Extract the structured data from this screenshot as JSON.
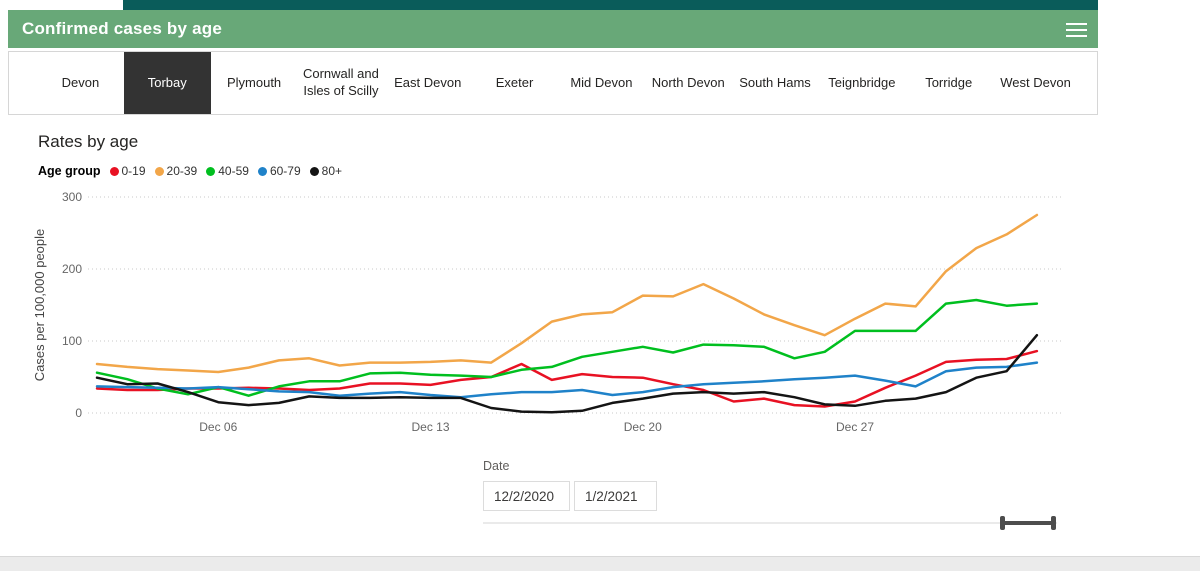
{
  "header": {
    "title": "Confirmed cases by age"
  },
  "tabs": [
    {
      "label": "Devon",
      "selected": false
    },
    {
      "label": "Torbay",
      "selected": true
    },
    {
      "label": "Plymouth",
      "selected": false
    },
    {
      "label": "Cornwall and Isles of Scilly",
      "selected": false
    },
    {
      "label": "East Devon",
      "selected": false
    },
    {
      "label": "Exeter",
      "selected": false
    },
    {
      "label": "Mid Devon",
      "selected": false
    },
    {
      "label": "North Devon",
      "selected": false
    },
    {
      "label": "South Hams",
      "selected": false
    },
    {
      "label": "Teignbridge",
      "selected": false
    },
    {
      "label": "Torridge",
      "selected": false
    },
    {
      "label": "West Devon",
      "selected": false
    }
  ],
  "chart": {
    "title": "Rates by age",
    "legend_title": "Age group"
  },
  "chart_data": {
    "type": "line",
    "title": "Rates by age",
    "xlabel": "Date",
    "ylabel": "Cases per 100,000 people",
    "ylim": [
      0,
      300
    ],
    "yticks": [
      0,
      100,
      200,
      300
    ],
    "grid": "horizontal-dotted",
    "legend_position": "top",
    "x": [
      "Dec 02",
      "Dec 03",
      "Dec 04",
      "Dec 05",
      "Dec 06",
      "Dec 07",
      "Dec 08",
      "Dec 09",
      "Dec 10",
      "Dec 11",
      "Dec 12",
      "Dec 13",
      "Dec 14",
      "Dec 15",
      "Dec 16",
      "Dec 17",
      "Dec 18",
      "Dec 19",
      "Dec 20",
      "Dec 21",
      "Dec 22",
      "Dec 23",
      "Dec 24",
      "Dec 25",
      "Dec 26",
      "Dec 27",
      "Dec 28",
      "Dec 29",
      "Dec 30",
      "Dec 31",
      "Jan 01",
      "Jan 02"
    ],
    "xticks": [
      {
        "index": 4,
        "label": "Dec 06"
      },
      {
        "index": 11,
        "label": "Dec 13"
      },
      {
        "index": 18,
        "label": "Dec 20"
      },
      {
        "index": 25,
        "label": "Dec 27"
      }
    ],
    "series": [
      {
        "name": "0-19",
        "color": "#e81123",
        "values": [
          34,
          32,
          32,
          34,
          34,
          35,
          34,
          32,
          34,
          41,
          41,
          39,
          46,
          50,
          68,
          46,
          54,
          50,
          49,
          40,
          32,
          16,
          20,
          11,
          9,
          16,
          35,
          52,
          71,
          74,
          75,
          86
        ]
      },
      {
        "name": "20-39",
        "color": "#f2a649",
        "values": [
          68,
          64,
          61,
          59,
          57,
          63,
          73,
          76,
          66,
          70,
          70,
          71,
          73,
          70,
          97,
          127,
          137,
          140,
          163,
          162,
          179,
          159,
          137,
          122,
          108,
          131,
          152,
          148,
          197,
          229,
          248,
          275
        ]
      },
      {
        "name": "40-59",
        "color": "#00bf1f",
        "values": [
          56,
          47,
          34,
          26,
          36,
          24,
          37,
          44,
          44,
          55,
          56,
          53,
          52,
          50,
          60,
          64,
          78,
          85,
          92,
          84,
          95,
          94,
          92,
          76,
          85,
          114,
          114,
          114,
          152,
          157,
          149,
          152
        ]
      },
      {
        "name": "60-79",
        "color": "#1f82c9",
        "values": [
          37,
          36,
          35,
          34,
          36,
          33,
          30,
          29,
          24,
          27,
          29,
          25,
          22,
          26,
          29,
          29,
          32,
          25,
          29,
          36,
          40,
          42,
          44,
          47,
          49,
          52,
          45,
          37,
          58,
          63,
          64,
          70
        ]
      },
      {
        "name": "80+",
        "color": "#141414",
        "values": [
          49,
          40,
          41,
          29,
          15,
          11,
          14,
          23,
          21,
          21,
          22,
          21,
          21,
          7,
          2,
          1,
          3,
          14,
          20,
          27,
          29,
          27,
          29,
          22,
          12,
          10,
          17,
          20,
          29,
          49,
          58,
          108
        ]
      }
    ]
  },
  "date_slicer": {
    "label": "Date",
    "start_value": "12/2/2020",
    "end_value": "1/2/2021"
  },
  "colors": {
    "topbar": "#0a5c5a",
    "header": "#68a878",
    "selected_tab": "#333333"
  }
}
